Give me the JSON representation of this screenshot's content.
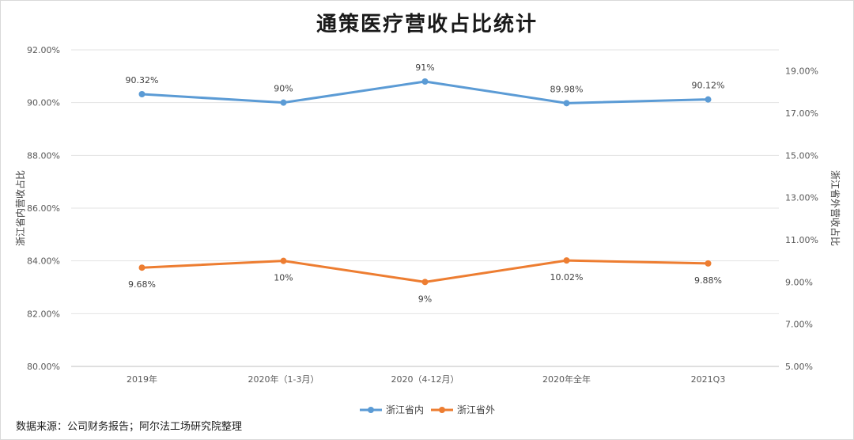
{
  "chart_data": {
    "type": "line",
    "title": "通策医疗营收占比统计",
    "categories": [
      "2019年",
      "2020年（1-3月）",
      "2020（4-12月）",
      "2020年全年",
      "2021Q3"
    ],
    "series": [
      {
        "name": "浙江省内",
        "axis": "left",
        "color": "#5b9bd5",
        "values": [
          90.32,
          90.0,
          90.8,
          89.98,
          90.12
        ],
        "labels": [
          "90.32%",
          "90%",
          "91%",
          "89.98%",
          "90.12%"
        ]
      },
      {
        "name": "浙江省外",
        "axis": "right",
        "color": "#ed7d31",
        "values": [
          9.68,
          10.0,
          9.0,
          10.02,
          9.88
        ],
        "labels": [
          "9.68%",
          "10%",
          "9%",
          "10.02%",
          "9.88%"
        ]
      }
    ],
    "y_left": {
      "label": "浙江省内营收占比",
      "min": 80,
      "max": 92,
      "ticks": [
        "80.00%",
        "82.00%",
        "84.00%",
        "86.00%",
        "88.00%",
        "90.00%",
        "92.00%"
      ]
    },
    "y_right": {
      "label": "浙江省外营收占比",
      "min": 5,
      "max": 20,
      "ticks": [
        "5.00%",
        "7.00%",
        "9.00%",
        "11.00%",
        "13.00%",
        "15.00%",
        "17.00%",
        "19.00%"
      ]
    },
    "grid": true,
    "legend_position": "bottom"
  },
  "source_note": "数据来源：公司财务报告；阿尔法工场研究院整理"
}
